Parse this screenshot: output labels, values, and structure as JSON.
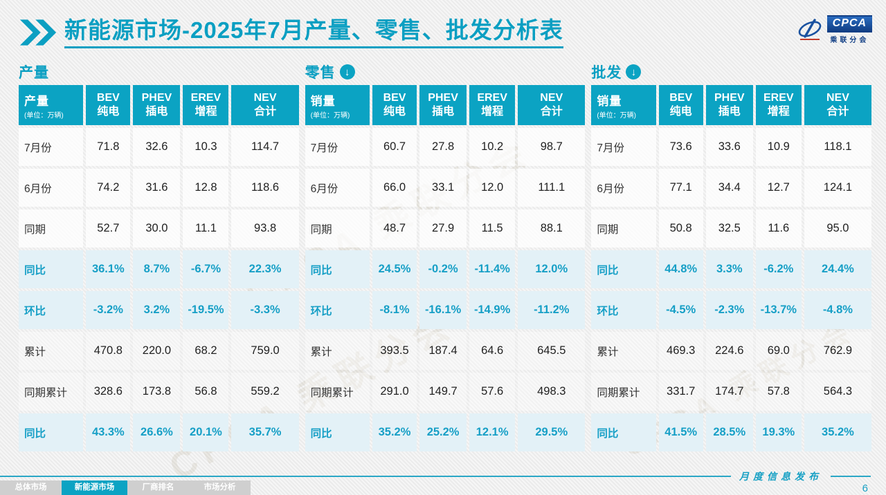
{
  "page": {
    "title_main": "新能源市场",
    "title_rest": "-2025年7月产量、零售、批发分析表",
    "publish_label": "月度信息发布",
    "page_number": "6",
    "watermark_text": "CPCA 乘联分会"
  },
  "logo": {
    "name": "CPCA",
    "subname": "乘联分会"
  },
  "colors": {
    "accent": "#0ba3c3",
    "percent_text": "#169fc6",
    "percent_row_bg": "#e3f1f7",
    "logo_blue": "#123f85"
  },
  "table_common": {
    "unit": "(单位：万辆)",
    "columns": [
      {
        "line1": "BEV",
        "line2": "纯电"
      },
      {
        "line1": "PHEV",
        "line2": "插电"
      },
      {
        "line1": "EREV",
        "line2": "增程"
      },
      {
        "line1": "NEV",
        "line2": "合计"
      }
    ],
    "row_labels": [
      "7月份",
      "6月份",
      "同期",
      "同比",
      "环比",
      "累计",
      "同期累计",
      "同比"
    ],
    "row_types": [
      "plain",
      "plain",
      "plain",
      "pct",
      "pct",
      "shade",
      "shade",
      "pct"
    ]
  },
  "tables": [
    {
      "section": "产量",
      "has_down_icon": false,
      "header_label": "产量",
      "rows": [
        [
          "71.8",
          "32.6",
          "10.3",
          "114.7"
        ],
        [
          "74.2",
          "31.6",
          "12.8",
          "118.6"
        ],
        [
          "52.7",
          "30.0",
          "11.1",
          "93.8"
        ],
        [
          "36.1%",
          "8.7%",
          "-6.7%",
          "22.3%"
        ],
        [
          "-3.2%",
          "3.2%",
          "-19.5%",
          "-3.3%"
        ],
        [
          "470.8",
          "220.0",
          "68.2",
          "759.0"
        ],
        [
          "328.6",
          "173.8",
          "56.8",
          "559.2"
        ],
        [
          "43.3%",
          "26.6%",
          "20.1%",
          "35.7%"
        ]
      ]
    },
    {
      "section": "零售",
      "has_down_icon": true,
      "header_label": "销量",
      "rows": [
        [
          "60.7",
          "27.8",
          "10.2",
          "98.7"
        ],
        [
          "66.0",
          "33.1",
          "12.0",
          "111.1"
        ],
        [
          "48.7",
          "27.9",
          "11.5",
          "88.1"
        ],
        [
          "24.5%",
          "-0.2%",
          "-11.4%",
          "12.0%"
        ],
        [
          "-8.1%",
          "-16.1%",
          "-14.9%",
          "-11.2%"
        ],
        [
          "393.5",
          "187.4",
          "64.6",
          "645.5"
        ],
        [
          "291.0",
          "149.7",
          "57.6",
          "498.3"
        ],
        [
          "35.2%",
          "25.2%",
          "12.1%",
          "29.5%"
        ]
      ]
    },
    {
      "section": "批发",
      "has_down_icon": true,
      "header_label": "销量",
      "rows": [
        [
          "73.6",
          "33.6",
          "10.9",
          "118.1"
        ],
        [
          "77.1",
          "34.4",
          "12.7",
          "124.1"
        ],
        [
          "50.8",
          "32.5",
          "11.6",
          "95.0"
        ],
        [
          "44.8%",
          "3.3%",
          "-6.2%",
          "24.4%"
        ],
        [
          "-4.5%",
          "-2.3%",
          "-13.7%",
          "-4.8%"
        ],
        [
          "469.3",
          "224.6",
          "69.0",
          "762.9"
        ],
        [
          "331.7",
          "174.7",
          "57.8",
          "564.3"
        ],
        [
          "41.5%",
          "28.5%",
          "19.3%",
          "35.2%"
        ]
      ]
    }
  ],
  "footer": {
    "tabs": [
      {
        "label": "总体市场",
        "active": false
      },
      {
        "label": "新能源市场",
        "active": true
      },
      {
        "label": "厂商排名",
        "active": false
      },
      {
        "label": "市场分析",
        "active": false
      }
    ]
  }
}
